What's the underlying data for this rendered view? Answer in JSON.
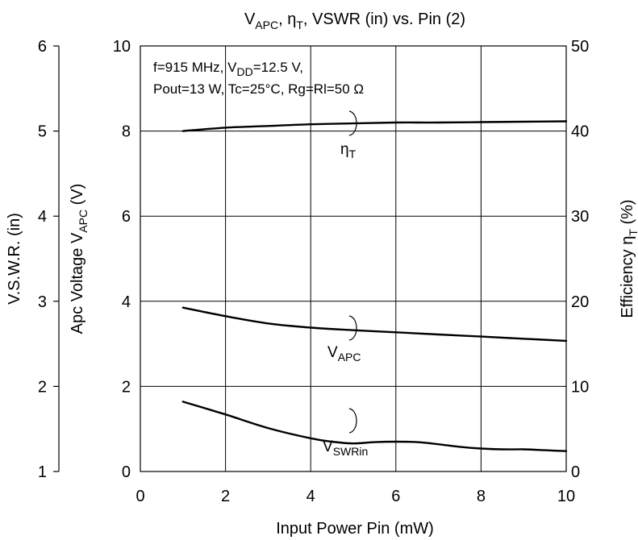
{
  "chart_data": {
    "type": "line",
    "title": {
      "pre": "V",
      "sub1": "APC",
      "mid": ", η",
      "sub2": "T",
      "post": ", VSWR (in) vs. Pin (2)"
    },
    "conditions": {
      "line1_a": "f=915 MHz, V",
      "line1_sub": "DD",
      "line1_b": "=12.5 V,",
      "line2": "Pout=13 W, Tc=25°C, Rg=Rl=50 Ω"
    },
    "x_axis": {
      "label": "Input Power  Pin  (mW)",
      "range": [
        0,
        10
      ],
      "ticks": [
        "0",
        "2",
        "4",
        "6",
        "8",
        "10"
      ]
    },
    "y_axis_left_inner": {
      "label_pre": "Apc Voltage  V",
      "label_sub": "APC",
      "label_post": "  (V)",
      "range": [
        0,
        10
      ],
      "ticks": [
        "0",
        "2",
        "4",
        "6",
        "8",
        "10"
      ]
    },
    "y_axis_left_outer": {
      "label": "V.S.W.R. (in)",
      "range": [
        1,
        6
      ],
      "ticks": [
        "1",
        "2",
        "3",
        "4",
        "5",
        "6"
      ]
    },
    "y_axis_right": {
      "label_pre": "Efficiency  η",
      "label_sub": "T",
      "label_post": "  (%)",
      "range": [
        0,
        50
      ],
      "ticks": [
        "0",
        "10",
        "20",
        "30",
        "40",
        "50"
      ]
    },
    "grid": true,
    "series": [
      {
        "name": "η",
        "name_sub": "T",
        "axis": "right",
        "x": [
          1,
          2,
          3,
          4,
          5,
          6,
          7,
          8,
          9,
          10
        ],
        "y": [
          40.0,
          40.4,
          40.6,
          40.8,
          40.9,
          41.0,
          41.0,
          41.05,
          41.1,
          41.15
        ]
      },
      {
        "name": "V",
        "name_sub": "APC",
        "axis": "left_inner",
        "x": [
          1,
          2,
          3,
          4,
          5,
          6,
          7,
          8,
          9,
          10
        ],
        "y": [
          3.85,
          3.65,
          3.48,
          3.38,
          3.32,
          3.27,
          3.22,
          3.17,
          3.12,
          3.07
        ]
      },
      {
        "name": "V",
        "name_sub": "SWRin",
        "axis": "left_outer",
        "x": [
          1,
          2,
          3,
          4,
          4.5,
          5,
          5.5,
          6,
          6.5,
          7,
          7.5,
          8,
          8.5,
          9,
          9.5,
          10
        ],
        "y": [
          1.82,
          1.67,
          1.51,
          1.39,
          1.35,
          1.33,
          1.345,
          1.35,
          1.345,
          1.32,
          1.29,
          1.27,
          1.26,
          1.26,
          1.25,
          1.24
        ]
      }
    ]
  }
}
